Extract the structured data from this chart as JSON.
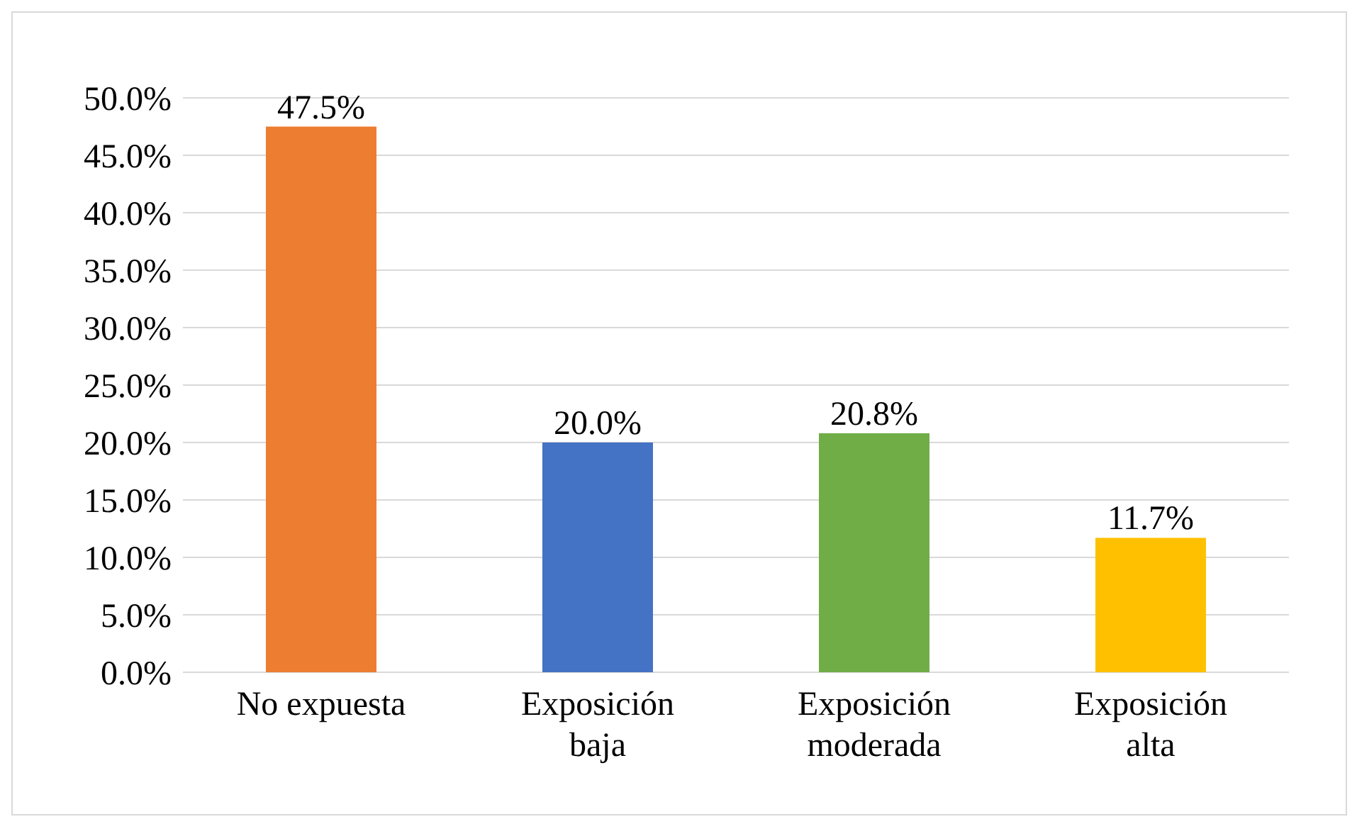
{
  "chart_data": {
    "type": "bar",
    "categories": [
      "No expuesta",
      "Exposición baja",
      "Exposición moderada",
      "Exposición alta"
    ],
    "values": [
      47.5,
      20.0,
      20.8,
      11.7
    ],
    "colors": [
      "#ed7d31",
      "#4472c4",
      "#70ad47",
      "#ffc000"
    ],
    "value_labels": [
      "47.5%",
      "20.0%",
      "20.8%",
      "11.7%"
    ],
    "ylim": [
      0,
      50
    ],
    "yticks": [
      {
        "value": 0,
        "label": "0.0%"
      },
      {
        "value": 5,
        "label": "5.0%"
      },
      {
        "value": 10,
        "label": "10.0%"
      },
      {
        "value": 15,
        "label": "15.0%"
      },
      {
        "value": 20,
        "label": "20.0%"
      },
      {
        "value": 25,
        "label": "25.0%"
      },
      {
        "value": 30,
        "label": "30.0%"
      },
      {
        "value": 35,
        "label": "35.0%"
      },
      {
        "value": 40,
        "label": "40.0%"
      },
      {
        "value": 45,
        "label": "45.0%"
      },
      {
        "value": 50,
        "label": "50.0%"
      }
    ],
    "grid": "y"
  }
}
